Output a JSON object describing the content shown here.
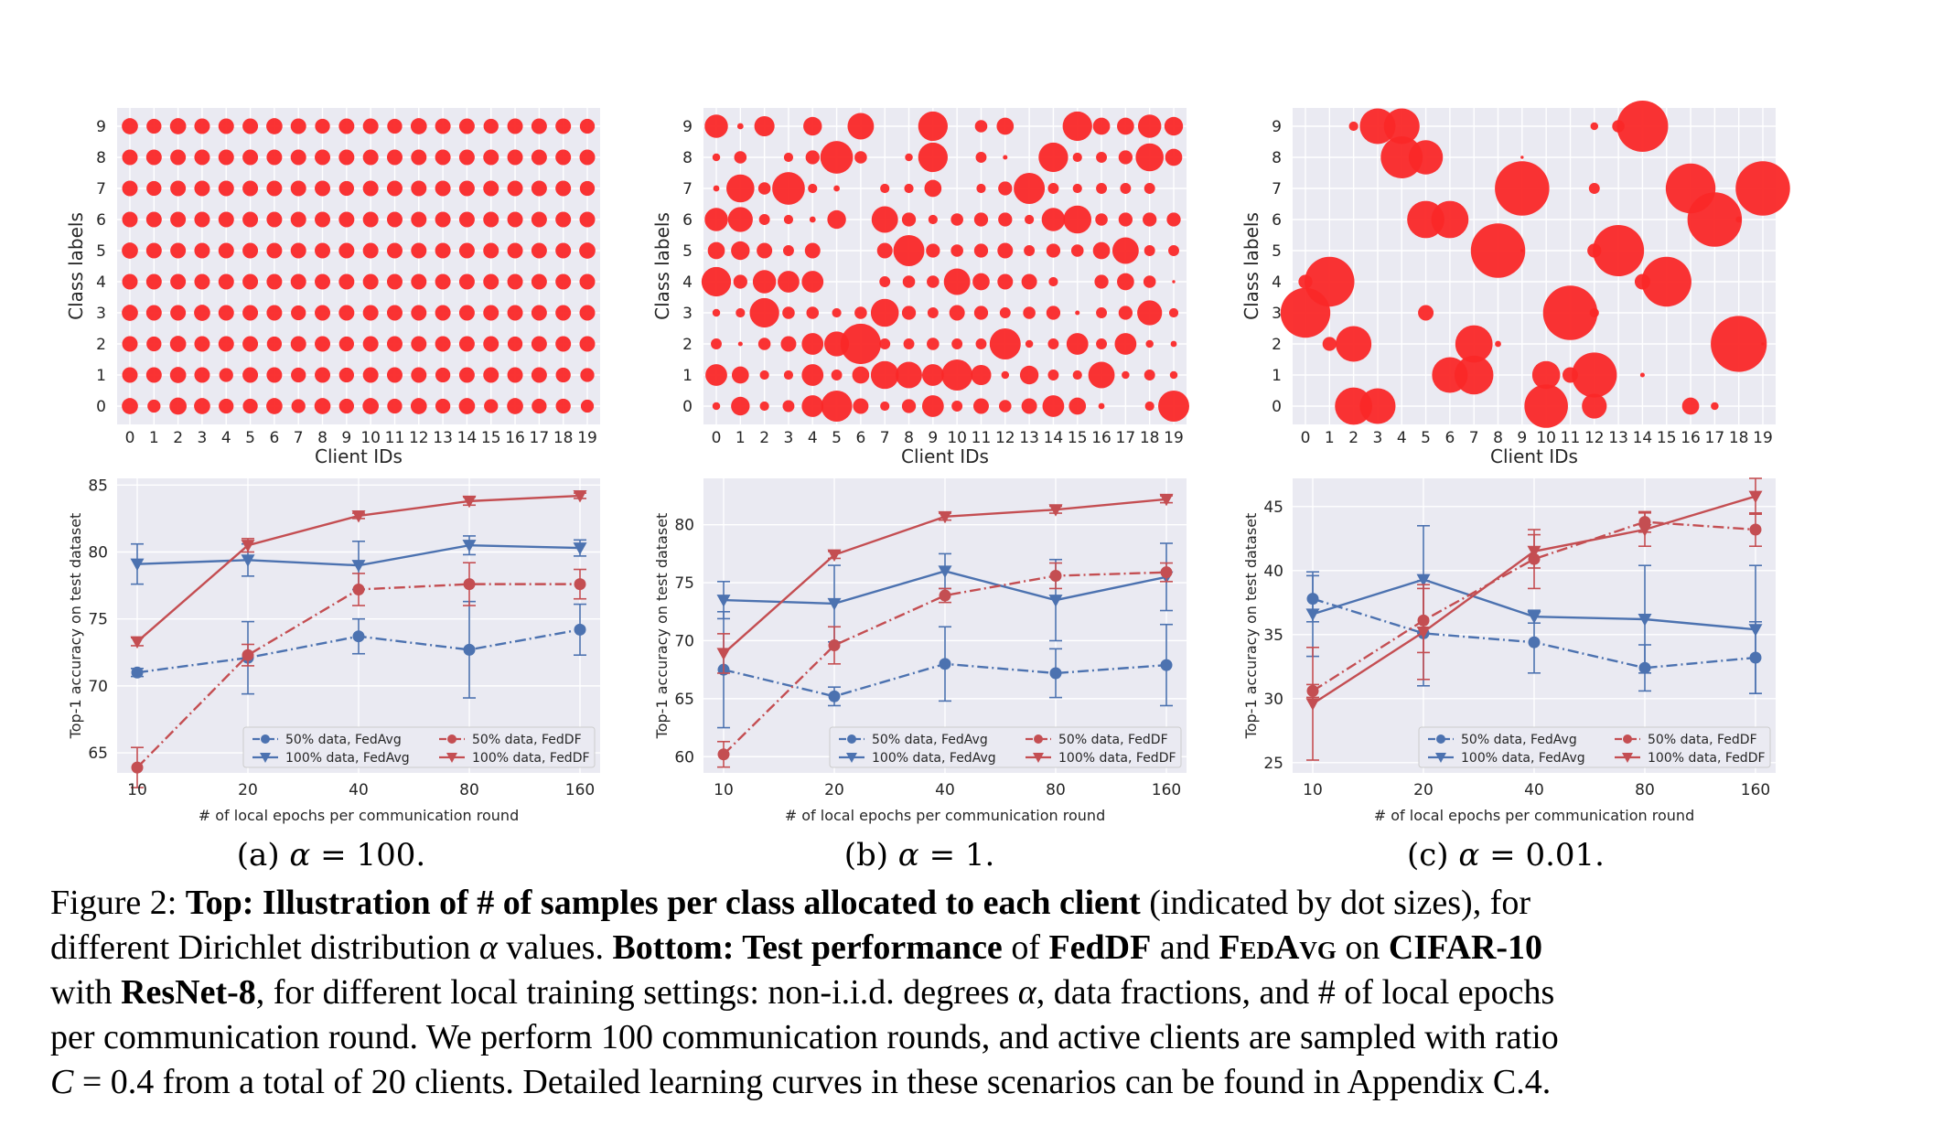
{
  "figure": {
    "colors": {
      "dot": "#fa2828",
      "fedavg": "#4c72b0",
      "feddf": "#c44e52",
      "panel": "#eaeaf2",
      "grid": "#ffffff"
    },
    "subcaption_labels": [
      "(a)",
      "(b)",
      "(c)"
    ],
    "subcaption_alpha": [
      "100.",
      "1.",
      "0.01."
    ],
    "caption": {
      "figure_label": "Figure 2:",
      "top_bold": "Top: Illustration of # of samples per class allocated to each client",
      "top_rest": " (indicated by dot sizes), for",
      "line2_a": "different Dirichlet distribution ",
      "line2_b": " values. ",
      "bottom_bold": "Bottom: Test performance",
      "line2_c": " of ",
      "feddf": "FedDF",
      "line2_d": " and ",
      "fedavg_caps": "FedAvg",
      "line2_e": " on ",
      "cifar": "CIFAR-10",
      "line3_a": "with ",
      "resnet": "ResNet-8",
      "line3_b": ", for different local training settings: non-i.i.d. degrees ",
      "line3_c": ", data fractions, and # of local epochs",
      "line4": "per communication round. We perform 100 communication rounds, and active clients are sampled with ratio",
      "line5_a": "C",
      "line5_b": " = 0.4 from a total of 20 clients. Detailed learning curves in these scenarios can be found in Appendix C.4."
    }
  },
  "chart_data": [
    {
      "type": "scatter",
      "panel": "(a) α=100.",
      "xlabel": "Client IDs",
      "ylabel": "Class labels",
      "x_ticks": [
        "0",
        "1",
        "2",
        "3",
        "4",
        "5",
        "6",
        "7",
        "8",
        "9",
        "10",
        "11",
        "12",
        "13",
        "14",
        "15",
        "16",
        "17",
        "18",
        "19"
      ],
      "y_ticks": [
        "0",
        "1",
        "2",
        "3",
        "4",
        "5",
        "6",
        "7",
        "8",
        "9"
      ],
      "note": "size matrix sizes[class][client], relative sample count (max 1.0)",
      "sizes": [
        [
          0.52,
          0.42,
          0.55,
          0.52,
          0.48,
          0.48,
          0.52,
          0.45,
          0.52,
          0.48,
          0.52,
          0.48,
          0.52,
          0.48,
          0.52,
          0.45,
          0.52,
          0.48,
          0.48,
          0.42
        ],
        [
          0.5,
          0.5,
          0.52,
          0.5,
          0.45,
          0.5,
          0.5,
          0.48,
          0.5,
          0.48,
          0.5,
          0.5,
          0.5,
          0.48,
          0.5,
          0.5,
          0.5,
          0.5,
          0.48,
          0.45
        ],
        [
          0.5,
          0.48,
          0.52,
          0.5,
          0.5,
          0.5,
          0.48,
          0.5,
          0.5,
          0.48,
          0.5,
          0.5,
          0.5,
          0.5,
          0.5,
          0.5,
          0.48,
          0.5,
          0.5,
          0.5
        ],
        [
          0.52,
          0.5,
          0.5,
          0.52,
          0.5,
          0.5,
          0.5,
          0.48,
          0.5,
          0.5,
          0.5,
          0.5,
          0.5,
          0.5,
          0.5,
          0.5,
          0.5,
          0.5,
          0.5,
          0.5
        ],
        [
          0.5,
          0.5,
          0.5,
          0.5,
          0.5,
          0.5,
          0.5,
          0.5,
          0.5,
          0.5,
          0.5,
          0.5,
          0.5,
          0.5,
          0.5,
          0.5,
          0.5,
          0.5,
          0.5,
          0.5
        ],
        [
          0.52,
          0.5,
          0.5,
          0.5,
          0.5,
          0.5,
          0.5,
          0.5,
          0.5,
          0.5,
          0.5,
          0.5,
          0.5,
          0.5,
          0.5,
          0.5,
          0.5,
          0.5,
          0.5,
          0.52
        ],
        [
          0.5,
          0.5,
          0.5,
          0.5,
          0.5,
          0.5,
          0.5,
          0.5,
          0.5,
          0.5,
          0.5,
          0.5,
          0.5,
          0.5,
          0.5,
          0.5,
          0.5,
          0.5,
          0.5,
          0.5
        ],
        [
          0.5,
          0.48,
          0.5,
          0.5,
          0.5,
          0.5,
          0.5,
          0.5,
          0.5,
          0.48,
          0.5,
          0.5,
          0.5,
          0.5,
          0.5,
          0.5,
          0.5,
          0.5,
          0.5,
          0.48
        ],
        [
          0.5,
          0.5,
          0.5,
          0.5,
          0.5,
          0.5,
          0.5,
          0.5,
          0.5,
          0.5,
          0.5,
          0.5,
          0.5,
          0.5,
          0.5,
          0.5,
          0.5,
          0.5,
          0.5,
          0.5
        ],
        [
          0.52,
          0.48,
          0.52,
          0.5,
          0.5,
          0.5,
          0.52,
          0.5,
          0.48,
          0.5,
          0.5,
          0.48,
          0.52,
          0.5,
          0.5,
          0.48,
          0.5,
          0.5,
          0.5,
          0.48
        ]
      ]
    },
    {
      "type": "scatter",
      "panel": "(b) α=1.",
      "xlabel": "Client IDs",
      "ylabel": "Class labels",
      "x_ticks": [
        "0",
        "1",
        "2",
        "3",
        "4",
        "5",
        "6",
        "7",
        "8",
        "9",
        "10",
        "11",
        "12",
        "13",
        "14",
        "15",
        "16",
        "17",
        "18",
        "19"
      ],
      "y_ticks": [
        "0",
        "1",
        "2",
        "3",
        "4",
        "5",
        "6",
        "7",
        "8",
        "9"
      ],
      "sizes": [
        [
          0.25,
          0.6,
          0.3,
          0.38,
          0.7,
          1.0,
          0.5,
          0.3,
          0.45,
          0.7,
          0.35,
          0.5,
          0.4,
          0.5,
          0.7,
          0.55,
          0.2,
          0.0,
          0.3,
          1.0
        ],
        [
          0.7,
          0.55,
          0.3,
          0.3,
          0.7,
          0.35,
          0.55,
          0.9,
          0.85,
          0.7,
          1.0,
          0.65,
          0.25,
          0.6,
          0.35,
          0.3,
          0.85,
          0.25,
          0.35,
          0.25
        ],
        [
          0.35,
          0.15,
          0.4,
          0.5,
          0.7,
          0.8,
          1.3,
          0.35,
          0.35,
          0.4,
          0.35,
          0.35,
          1.0,
          0.25,
          0.35,
          0.7,
          0.35,
          0.7,
          0.25,
          0.2
        ],
        [
          0.25,
          0.3,
          0.95,
          0.4,
          0.4,
          0.3,
          0.4,
          0.9,
          0.45,
          0.35,
          0.5,
          0.45,
          0.35,
          0.4,
          0.45,
          0.15,
          0.35,
          0.45,
          0.8,
          0.3
        ],
        [
          0.95,
          0.45,
          0.75,
          0.7,
          0.7,
          0.0,
          0.0,
          0.35,
          0.4,
          0.4,
          0.85,
          0.55,
          0.5,
          0.5,
          0.3,
          0.0,
          0.45,
          0.55,
          0.4,
          0.1
        ],
        [
          0.55,
          0.6,
          0.5,
          0.35,
          0.5,
          0.0,
          0.0,
          0.5,
          1.0,
          0.45,
          0.4,
          0.45,
          0.5,
          0.35,
          0.45,
          0.4,
          0.55,
          0.85,
          0.35,
          0.35
        ],
        [
          0.75,
          0.8,
          0.35,
          0.3,
          0.2,
          0.6,
          0.0,
          0.85,
          0.45,
          0.3,
          0.4,
          0.45,
          0.45,
          0.3,
          0.75,
          0.9,
          0.4,
          0.45,
          0.45,
          0.45
        ],
        [
          0.2,
          0.9,
          0.4,
          1.05,
          0.3,
          0.2,
          0.0,
          0.3,
          0.3,
          0.55,
          0.0,
          0.3,
          0.45,
          1.0,
          0.35,
          0.3,
          0.35,
          0.35,
          0.35,
          0.0
        ],
        [
          0.25,
          0.4,
          0.0,
          0.3,
          0.45,
          1.05,
          0.4,
          0.0,
          0.25,
          0.95,
          0.0,
          0.35,
          0.15,
          0.0,
          0.95,
          0.3,
          0.35,
          0.45,
          0.9,
          0.55
        ],
        [
          0.75,
          0.2,
          0.65,
          0.0,
          0.6,
          0.0,
          0.85,
          0.0,
          0.0,
          0.95,
          0.0,
          0.4,
          0.55,
          0.0,
          0.0,
          0.95,
          0.55,
          0.55,
          0.75,
          0.6
        ]
      ]
    },
    {
      "type": "scatter",
      "panel": "(c) α=0.01.",
      "xlabel": "Client IDs",
      "ylabel": "Class labels",
      "x_ticks": [
        "0",
        "1",
        "2",
        "3",
        "4",
        "5",
        "6",
        "7",
        "8",
        "9",
        "10",
        "11",
        "12",
        "13",
        "14",
        "15",
        "16",
        "17",
        "18",
        "19"
      ],
      "y_ticks": [
        "0",
        "1",
        "2",
        "3",
        "4",
        "5",
        "6",
        "7",
        "8",
        "9"
      ],
      "sizes": [
        [
          0,
          0,
          1.2,
          1.15,
          0,
          0,
          0,
          0,
          0,
          0,
          1.4,
          0,
          0.8,
          0,
          0,
          0,
          0.55,
          0.25,
          0,
          0
        ],
        [
          0,
          0,
          0,
          0,
          0,
          0,
          1.15,
          1.25,
          0,
          0,
          0.9,
          0.5,
          1.45,
          0,
          0.15,
          0,
          0,
          0,
          0,
          0
        ],
        [
          0,
          0.45,
          1.15,
          0,
          0,
          0,
          0,
          1.2,
          0.2,
          0,
          0,
          0,
          0,
          0,
          0,
          0,
          0,
          0,
          1.8,
          0.1
        ],
        [
          1.6,
          0,
          0,
          0,
          0,
          0.5,
          0,
          0,
          0,
          0,
          0,
          1.75,
          0.3,
          0,
          0,
          0,
          0,
          0,
          0,
          0
        ],
        [
          0.45,
          1.6,
          0,
          0,
          0,
          0,
          0,
          0,
          0,
          0,
          0,
          0,
          0,
          0,
          0.5,
          1.6,
          0,
          0,
          0,
          0
        ],
        [
          0,
          0,
          0,
          0,
          0,
          0,
          0,
          0,
          1.75,
          0.1,
          0,
          0,
          0.45,
          1.65,
          0,
          0,
          0,
          0,
          0,
          0
        ],
        [
          0,
          0,
          0,
          0,
          0,
          1.2,
          1.2,
          0,
          0,
          0,
          0,
          0,
          0,
          0,
          0,
          0,
          0,
          1.75,
          0.2,
          0
        ],
        [
          0,
          0,
          0,
          0,
          0,
          0,
          0,
          0,
          0,
          1.75,
          0,
          0,
          0.35,
          0,
          0,
          0,
          1.6,
          0,
          0,
          1.75
        ],
        [
          0,
          0,
          0,
          0,
          1.35,
          1.1,
          0,
          0,
          0,
          0.1,
          0,
          0,
          0,
          0,
          0,
          0,
          0,
          0,
          0,
          0
        ],
        [
          0,
          0,
          0.3,
          1.15,
          1.15,
          0,
          0,
          0,
          0,
          0,
          0,
          0,
          0.25,
          0.4,
          1.65,
          0,
          0,
          0,
          0,
          0
        ]
      ]
    },
    {
      "type": "line",
      "panel": "(a) α=100.",
      "xlabel": "# of local epochs per communication round",
      "ylabel": "Top-1 accuracy on test dataset",
      "categories": [
        "10",
        "20",
        "40",
        "80",
        "160"
      ],
      "ylim": [
        63.5,
        85.5
      ],
      "yticks": [
        65,
        70,
        75,
        80,
        85
      ],
      "legend_loc": "lower-right",
      "series": [
        {
          "name": "50% data, FedAvg",
          "color": "fedavg",
          "style": "dashdot",
          "marker": "circle",
          "values": [
            71.0,
            72.1,
            73.7,
            72.7,
            74.2
          ],
          "err": [
            0.3,
            2.7,
            1.3,
            3.6,
            1.9
          ]
        },
        {
          "name": "100% data, FedAvg",
          "color": "fedavg",
          "style": "solid",
          "marker": "triangle",
          "values": [
            79.1,
            79.4,
            79.0,
            80.5,
            80.3
          ],
          "err": [
            1.5,
            1.2,
            1.8,
            0.7,
            0.6
          ]
        },
        {
          "name": "50% data, FedDF",
          "color": "feddf",
          "style": "dashdot",
          "marker": "circle",
          "values": [
            63.9,
            72.3,
            77.2,
            77.6,
            77.6
          ],
          "err": [
            1.5,
            0.8,
            1.2,
            1.6,
            1.1
          ]
        },
        {
          "name": "100% data, FedDF",
          "color": "feddf",
          "style": "solid",
          "marker": "triangle",
          "values": [
            73.3,
            80.5,
            82.7,
            83.8,
            84.2
          ],
          "err": [
            0.3,
            0.5,
            0.2,
            0.3,
            0.2
          ]
        }
      ]
    },
    {
      "type": "line",
      "panel": "(b) α=1.",
      "xlabel": "# of local epochs per communication round",
      "ylabel": "Top-1 accuracy on test dataset",
      "categories": [
        "10",
        "20",
        "40",
        "80",
        "160"
      ],
      "ylim": [
        58.6,
        84.0
      ],
      "yticks": [
        60,
        65,
        70,
        75,
        80
      ],
      "legend_loc": "lower-right",
      "series": [
        {
          "name": "50% data, FedAvg",
          "color": "fedavg",
          "style": "dashdot",
          "marker": "circle",
          "values": [
            67.5,
            65.2,
            68.0,
            67.2,
            67.9
          ],
          "err": [
            5.0,
            0.8,
            3.2,
            2.1,
            3.5
          ]
        },
        {
          "name": "100% data, FedAvg",
          "color": "fedavg",
          "style": "solid",
          "marker": "triangle",
          "values": [
            73.5,
            73.2,
            76.0,
            73.5,
            75.5
          ],
          "err": [
            1.6,
            3.3,
            1.5,
            3.5,
            2.9
          ]
        },
        {
          "name": "50% data, FedDF",
          "color": "feddf",
          "style": "dashdot",
          "marker": "circle",
          "values": [
            60.2,
            69.6,
            73.9,
            75.6,
            75.9
          ],
          "err": [
            1.1,
            1.6,
            0.6,
            1.1,
            0.8
          ]
        },
        {
          "name": "100% data, FedDF",
          "color": "feddf",
          "style": "solid",
          "marker": "triangle",
          "values": [
            68.9,
            77.4,
            80.7,
            81.3,
            82.2
          ],
          "err": [
            1.7,
            0.3,
            0.3,
            0.3,
            0.3
          ]
        }
      ]
    },
    {
      "type": "line",
      "panel": "(c) α=0.01.",
      "xlabel": "# of local epochs per communication round",
      "ylabel": "Top-1 accuracy on test dataset",
      "categories": [
        "10",
        "20",
        "40",
        "80",
        "160"
      ],
      "ylim": [
        24.2,
        47.2
      ],
      "yticks": [
        25,
        30,
        35,
        40,
        45
      ],
      "legend_loc": "lower-right",
      "series": [
        {
          "name": "50% data, FedAvg",
          "color": "fedavg",
          "style": "dashdot",
          "marker": "circle",
          "values": [
            37.8,
            35.1,
            34.4,
            32.4,
            33.2
          ],
          "err": [
            1.8,
            4.1,
            2.4,
            1.8,
            2.8
          ]
        },
        {
          "name": "100% data, FedAvg",
          "color": "fedavg",
          "style": "solid",
          "marker": "triangle",
          "values": [
            36.6,
            39.3,
            36.4,
            36.2,
            35.4
          ],
          "err": [
            3.3,
            4.2,
            0.5,
            4.2,
            5.0
          ]
        },
        {
          "name": "50% data, FedDF",
          "color": "feddf",
          "style": "dashdot",
          "marker": "circle",
          "values": [
            30.6,
            36.1,
            40.9,
            43.8,
            43.2
          ],
          "err": [
            0.5,
            2.5,
            2.3,
            0.8,
            1.3
          ]
        },
        {
          "name": "100% data, FedDF",
          "color": "feddf",
          "style": "solid",
          "marker": "triangle",
          "values": [
            29.6,
            35.2,
            41.5,
            43.2,
            45.8
          ],
          "err": [
            4.4,
            3.7,
            1.3,
            1.3,
            1.4
          ]
        }
      ]
    }
  ]
}
